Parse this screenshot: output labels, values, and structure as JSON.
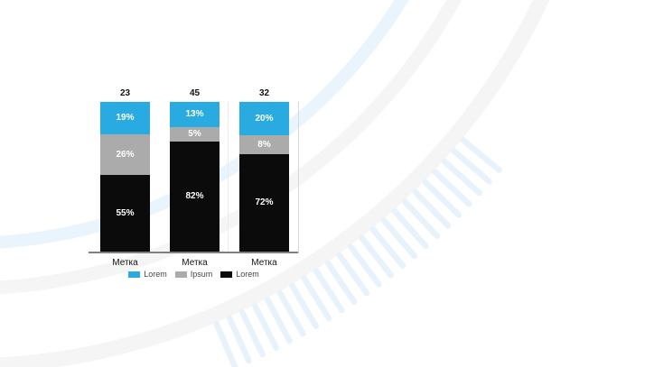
{
  "chart_data": {
    "type": "bar",
    "subtype": "100-percent-stacked-column",
    "categories": [
      "Метка",
      "Метка",
      "Метка"
    ],
    "totals": [
      "23",
      "45",
      "32"
    ],
    "series": [
      {
        "name": "Lorem",
        "color": "#29abe2",
        "values": [
          19,
          13,
          20
        ],
        "labels": [
          "19%",
          "13%",
          "20%"
        ]
      },
      {
        "name": "Ipsum",
        "color": "#ababab",
        "values": [
          26,
          5,
          8
        ],
        "labels": [
          "26%",
          "5%",
          "8%"
        ]
      },
      {
        "name": "Lorem",
        "color": "#0b0b0b",
        "values": [
          55,
          82,
          72
        ],
        "labels": [
          "55%",
          "82%",
          "72%"
        ]
      }
    ],
    "stack_order_top_to_bottom": [
      "Lorem",
      "Ipsum",
      "Lorem"
    ],
    "title": "",
    "xlabel": "",
    "ylabel": "",
    "ylim": [
      0,
      100
    ],
    "grid": "off",
    "legend_position": "bottom-center",
    "value_label_color": "#ffffff",
    "total_label_color": "#111111"
  }
}
